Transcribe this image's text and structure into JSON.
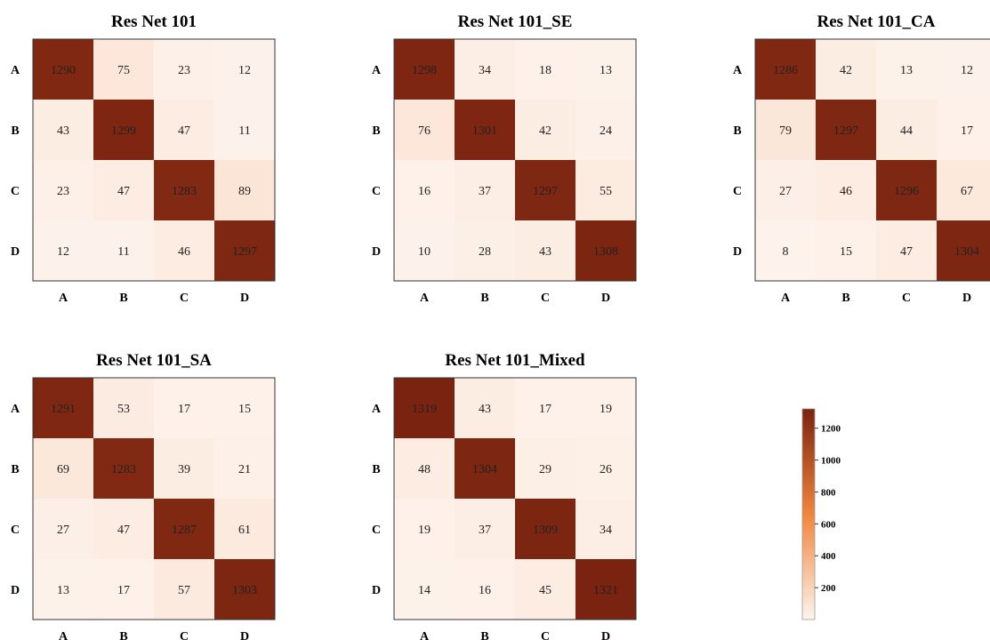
{
  "chart_data": {
    "type": "heatmap",
    "row_labels": [
      "A",
      "B",
      "C",
      "D"
    ],
    "col_labels": [
      "A",
      "B",
      "C",
      "D"
    ],
    "panels": [
      {
        "title": "Res Net 101",
        "values": [
          [
            1290,
            75,
            23,
            12
          ],
          [
            43,
            1299,
            47,
            11
          ],
          [
            23,
            47,
            1283,
            89
          ],
          [
            12,
            11,
            46,
            1297
          ]
        ]
      },
      {
        "title": "Res Net 101_SE",
        "values": [
          [
            1298,
            34,
            18,
            13
          ],
          [
            76,
            1301,
            42,
            24
          ],
          [
            16,
            37,
            1297,
            55
          ],
          [
            10,
            28,
            43,
            1308
          ]
        ]
      },
      {
        "title": "Res Net 101_CA",
        "values": [
          [
            1286,
            42,
            13,
            12
          ],
          [
            79,
            1297,
            44,
            17
          ],
          [
            27,
            46,
            1296,
            67
          ],
          [
            8,
            15,
            47,
            1304
          ]
        ]
      },
      {
        "title": "Res Net 101_SA",
        "values": [
          [
            1291,
            53,
            17,
            15
          ],
          [
            69,
            1283,
            39,
            21
          ],
          [
            27,
            47,
            1287,
            61
          ],
          [
            13,
            17,
            57,
            1303
          ]
        ]
      },
      {
        "title": "Res Net 101_Mixed",
        "values": [
          [
            1319,
            43,
            17,
            19
          ],
          [
            48,
            1304,
            29,
            26
          ],
          [
            19,
            37,
            1309,
            34
          ],
          [
            14,
            16,
            45,
            1321
          ]
        ]
      }
    ],
    "colorbar": {
      "ticks": [
        200,
        400,
        600,
        800,
        1000,
        1200
      ],
      "range": [
        0,
        1321
      ],
      "color_low": "#fdf4ee",
      "color_mid": "#f0853c",
      "color_high": "#7a2310"
    },
    "grid": false
  }
}
